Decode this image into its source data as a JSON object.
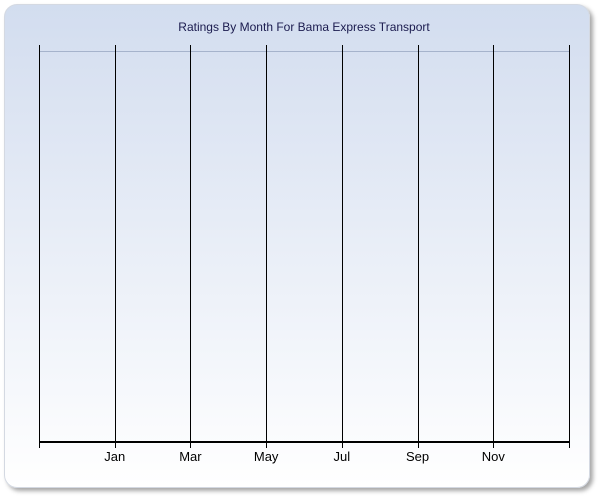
{
  "chart": {
    "title": "Ratings By Month For Bama Express Transport",
    "colors": {
      "title": "#1a1a4e",
      "panel_gradient_top": "#d2ddef",
      "panel_gradient_bottom": "#ffffff",
      "panel_border": "#d4d9e2",
      "plot_top_border": "#a6b3cc",
      "gridline": "#000000",
      "axis_line": "#000000",
      "tick_label": "#000000"
    },
    "x_axis": {
      "tick_labels": [
        "Jan",
        "Mar",
        "May",
        "Jul",
        "Sep",
        "Nov"
      ],
      "gridline_count": 8
    }
  },
  "chart_data": {
    "type": "line",
    "title": "Ratings By Month For Bama Express Transport",
    "categories": [
      "Jan",
      "Mar",
      "May",
      "Jul",
      "Sep",
      "Nov"
    ],
    "series": [],
    "plotted_points": "none (chart area is empty, no data rendered)",
    "xlabel": "",
    "ylabel": "",
    "grid": "vertical gridlines only (8 lines: 6 labeled every 2 months plus unlabeled left/right edge lines), no horizontal gridlines",
    "y_axis": "no tick labels or values shown",
    "legend": "none",
    "background": "vertical gradient light blue to white inside rounded panel"
  }
}
